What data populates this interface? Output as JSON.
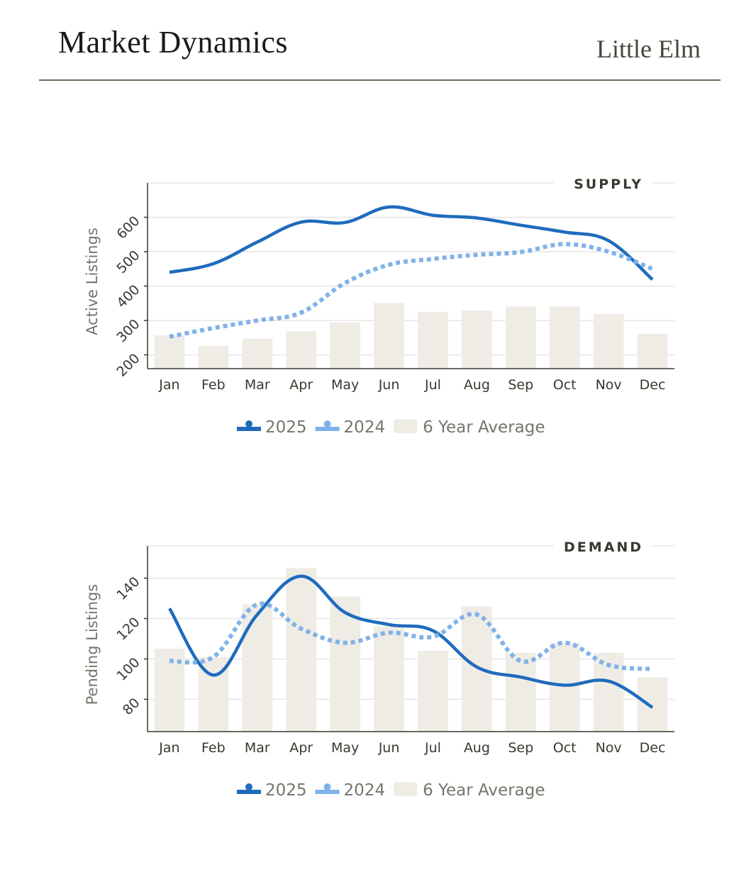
{
  "header": {
    "title": "Market Dynamics",
    "location": "Little Elm"
  },
  "colors": {
    "series_2025": "#1f6bbd",
    "series_2024": "#7fb2ea",
    "average_bars": "#efece6",
    "grid": "#e6e6e6",
    "axis": "#3a382f",
    "rule": "#6e6a58"
  },
  "chart_data": [
    {
      "type": "line",
      "section_title": "SUPPLY",
      "ylabel": "Active Listings",
      "xlabel": "",
      "categories": [
        "Jan",
        "Feb",
        "Mar",
        "Apr",
        "May",
        "Jun",
        "Jul",
        "Aug",
        "Sep",
        "Oct",
        "Nov",
        "Dec"
      ],
      "yticks": [
        200,
        300,
        400,
        500,
        600
      ],
      "ylim": [
        160,
        700
      ],
      "grid": true,
      "legend_position": "bottom-center",
      "series": [
        {
          "name": "2025",
          "type": "line",
          "style": "solid",
          "values": [
            440,
            465,
            528,
            586,
            585,
            630,
            606,
            598,
            577,
            557,
            532,
            419
          ]
        },
        {
          "name": "2024",
          "type": "line",
          "style": "dotted",
          "values": [
            253,
            278,
            300,
            323,
            409,
            462,
            479,
            491,
            499,
            522,
            500,
            450
          ]
        },
        {
          "name": "6 Year Average",
          "type": "bar",
          "values": [
            257,
            226,
            247,
            269,
            294,
            351,
            325,
            329,
            341,
            341,
            319,
            261
          ]
        }
      ],
      "legend": [
        "2025",
        "2024",
        "6 Year Average"
      ]
    },
    {
      "type": "line",
      "section_title": "DEMAND",
      "ylabel": "Pending Listings",
      "xlabel": "",
      "categories": [
        "Jan",
        "Feb",
        "Mar",
        "Apr",
        "May",
        "Jun",
        "Jul",
        "Aug",
        "Sep",
        "Oct",
        "Nov",
        "Dec"
      ],
      "yticks": [
        80,
        100,
        120,
        140
      ],
      "ylim": [
        64,
        156
      ],
      "grid": true,
      "legend_position": "bottom-center",
      "series": [
        {
          "name": "2025",
          "type": "line",
          "style": "solid",
          "values": [
            125,
            92,
            122,
            141,
            123,
            117,
            114,
            96,
            91,
            87,
            89,
            76
          ]
        },
        {
          "name": "2024",
          "type": "line",
          "style": "dotted",
          "values": [
            99,
            101,
            127,
            115,
            108,
            113,
            111,
            122,
            99,
            108,
            97,
            95
          ]
        },
        {
          "name": "6 Year Average",
          "type": "bar",
          "values": [
            105,
            101,
            127,
            145,
            131,
            116,
            104,
            126,
            103,
            108,
            103,
            91
          ]
        }
      ],
      "legend": [
        "2025",
        "2024",
        "6 Year Average"
      ]
    }
  ]
}
